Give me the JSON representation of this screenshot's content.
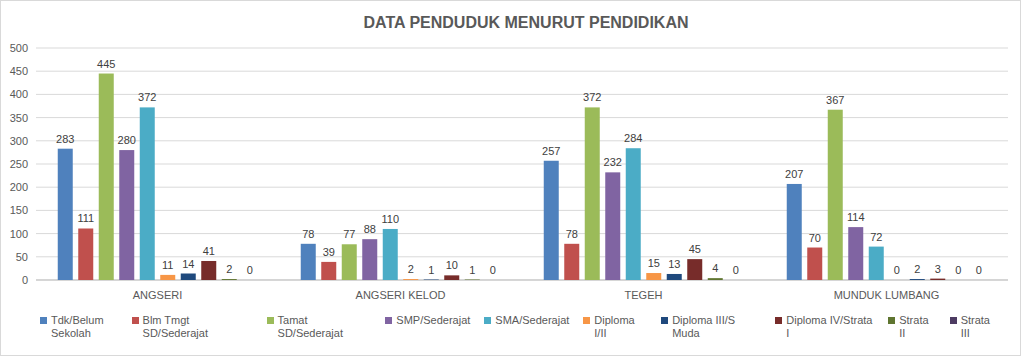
{
  "chart_data": {
    "type": "bar",
    "title": "DATA PENDUDUK MENURUT PENDIDIKAN",
    "categories": [
      "ANGSERI",
      "ANGSERI KELOD",
      "TEGEH",
      "MUNDUK LUMBANG"
    ],
    "series": [
      {
        "name": "Tdk/Belum Sekolah",
        "color": "#4f81bd",
        "values": [
          283,
          78,
          257,
          207
        ]
      },
      {
        "name": "Blm Tmgt SD/Sederajat",
        "color": "#c0504d",
        "values": [
          111,
          39,
          78,
          70
        ]
      },
      {
        "name": "Tamat SD/Sederajat",
        "color": "#9bbb59",
        "values": [
          445,
          77,
          372,
          367
        ]
      },
      {
        "name": "SMP/Sederajat",
        "color": "#8064a2",
        "values": [
          280,
          88,
          232,
          114
        ]
      },
      {
        "name": "SMA/Sederajat",
        "color": "#4bacc6",
        "values": [
          372,
          110,
          284,
          72
        ]
      },
      {
        "name": "Diploma I/II",
        "color": "#f79646",
        "values": [
          11,
          2,
          15,
          0
        ]
      },
      {
        "name": "Diploma III/S Muda",
        "color": "#1f497d",
        "values": [
          14,
          1,
          13,
          2
        ]
      },
      {
        "name": "Diploma IV/Strata I",
        "color": "#772c2a",
        "values": [
          41,
          10,
          45,
          3
        ]
      },
      {
        "name": "Strata II",
        "color": "#5f7530",
        "values": [
          2,
          1,
          4,
          0
        ]
      },
      {
        "name": "Strata III",
        "color": "#4d3b62",
        "values": [
          0,
          0,
          0,
          0
        ]
      }
    ],
    "ylim": [
      0,
      500
    ],
    "yticks": [
      0,
      50,
      100,
      150,
      200,
      250,
      300,
      350,
      400,
      450,
      500
    ],
    "grid": true,
    "data_labels": true,
    "legend": "bottom"
  }
}
